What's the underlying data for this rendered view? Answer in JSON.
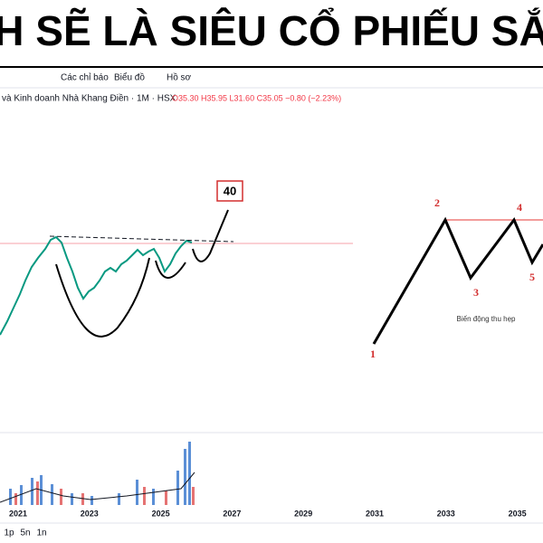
{
  "header": {
    "title": "H SẼ LÀ SIÊU CỔ PHIẾU SẮ"
  },
  "toolbar": {
    "items": [
      "Các chỉ báo",
      "Biểu đồ",
      "Hồ sơ"
    ]
  },
  "ticker": {
    "name": "và Kinh doanh Nhà Khang Điền · 1M · HSX",
    "ohlc": "O35.30 H35.95 L31.60 C35.05 −0.80 (−2.23%)"
  },
  "annotations": {
    "target": "40",
    "wave_labels": [
      "1",
      "2",
      "3",
      "4",
      "5"
    ],
    "note": "Biến động thu hẹp"
  },
  "x_axis": {
    "labels": [
      "2021",
      "2023",
      "2025",
      "2027",
      "2029",
      "2031",
      "2033",
      "2035"
    ]
  },
  "bottom_bar": {
    "ranges": [
      "1p",
      "5n",
      "1n"
    ]
  }
}
